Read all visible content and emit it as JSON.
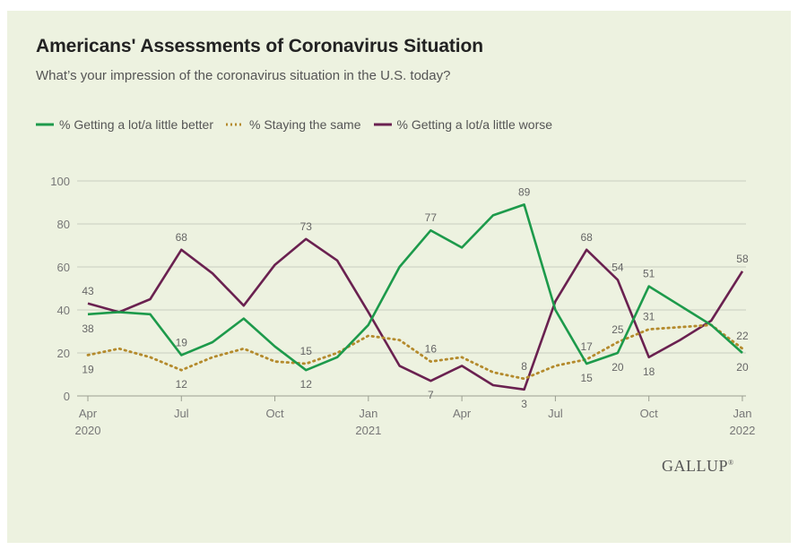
{
  "colors": {
    "better": "#1d9a4b",
    "same": "#b48a2c",
    "worse": "#6a2150",
    "grid": "#c9cdbf",
    "background": "#edf2e0"
  },
  "chart_data": {
    "type": "line",
    "title": "Americans' Assessments of Coronavirus Situation",
    "subtitle": "What’s your impression of the coronavirus situation in the U.S. today?",
    "xlabel": "",
    "ylabel": "",
    "ylim": [
      0,
      100
    ],
    "yticks": [
      0,
      20,
      40,
      60,
      80,
      100
    ],
    "xticks": [
      {
        "month": 0,
        "label": "Apr",
        "year": "2020"
      },
      {
        "month": 3,
        "label": "Jul",
        "year": ""
      },
      {
        "month": 6,
        "label": "Oct",
        "year": ""
      },
      {
        "month": 9,
        "label": "Jan",
        "year": "2021"
      },
      {
        "month": 12,
        "label": "Apr",
        "year": ""
      },
      {
        "month": 15,
        "label": "Jul",
        "year": ""
      },
      {
        "month": 18,
        "label": "Oct",
        "year": ""
      },
      {
        "month": 21,
        "label": "Jan",
        "year": "2022"
      }
    ],
    "series": [
      {
        "key": "better",
        "name": "% Getting a lot/a little better",
        "style": "solid",
        "points": [
          [
            0,
            38
          ],
          [
            1,
            39
          ],
          [
            2,
            38
          ],
          [
            3,
            19
          ],
          [
            4,
            25
          ],
          [
            5,
            36
          ],
          [
            6,
            23
          ],
          [
            7,
            12
          ],
          [
            8,
            18
          ],
          [
            9,
            33
          ],
          [
            10,
            60
          ],
          [
            11,
            77
          ],
          [
            12,
            69
          ],
          [
            13,
            84
          ],
          [
            14,
            89
          ],
          [
            15,
            40
          ],
          [
            16,
            15
          ],
          [
            17,
            20
          ],
          [
            18,
            51
          ],
          [
            19,
            42
          ],
          [
            20,
            33
          ],
          [
            21,
            20
          ]
        ],
        "labels": [
          {
            "i": 0,
            "text": "38",
            "pos": "below"
          },
          {
            "i": 3,
            "text": "19",
            "pos": "above"
          },
          {
            "i": 7,
            "text": "12",
            "pos": "below"
          },
          {
            "i": 11,
            "text": "77",
            "pos": "above"
          },
          {
            "i": 14,
            "text": "89",
            "pos": "above"
          },
          {
            "i": 16,
            "text": "15",
            "pos": "below"
          },
          {
            "i": 17,
            "text": "20",
            "pos": "below"
          },
          {
            "i": 18,
            "text": "51",
            "pos": "above"
          },
          {
            "i": 21,
            "text": "20",
            "pos": "below"
          }
        ]
      },
      {
        "key": "same",
        "name": "% Staying the same",
        "style": "dotted",
        "points": [
          [
            0,
            19
          ],
          [
            1,
            22
          ],
          [
            2,
            18
          ],
          [
            3,
            12
          ],
          [
            4,
            18
          ],
          [
            5,
            22
          ],
          [
            6,
            16
          ],
          [
            7,
            15
          ],
          [
            8,
            20
          ],
          [
            9,
            28
          ],
          [
            10,
            26
          ],
          [
            11,
            16
          ],
          [
            12,
            18
          ],
          [
            13,
            11
          ],
          [
            14,
            8
          ],
          [
            15,
            14
          ],
          [
            16,
            17
          ],
          [
            17,
            25
          ],
          [
            18,
            31
          ],
          [
            19,
            32
          ],
          [
            20,
            33
          ],
          [
            21,
            22
          ]
        ],
        "labels": [
          {
            "i": 0,
            "text": "19",
            "pos": "below"
          },
          {
            "i": 3,
            "text": "12",
            "pos": "below"
          },
          {
            "i": 7,
            "text": "15",
            "pos": "above"
          },
          {
            "i": 11,
            "text": "16",
            "pos": "above"
          },
          {
            "i": 14,
            "text": "8",
            "pos": "above"
          },
          {
            "i": 16,
            "text": "17",
            "pos": "above"
          },
          {
            "i": 17,
            "text": "25",
            "pos": "above"
          },
          {
            "i": 18,
            "text": "31",
            "pos": "above"
          },
          {
            "i": 21,
            "text": "22",
            "pos": "above"
          }
        ]
      },
      {
        "key": "worse",
        "name": "% Getting a lot/a little worse",
        "style": "solid",
        "points": [
          [
            0,
            43
          ],
          [
            1,
            39
          ],
          [
            2,
            45
          ],
          [
            3,
            68
          ],
          [
            4,
            57
          ],
          [
            5,
            42
          ],
          [
            6,
            61
          ],
          [
            7,
            73
          ],
          [
            8,
            63
          ],
          [
            9,
            39
          ],
          [
            10,
            14
          ],
          [
            11,
            7
          ],
          [
            12,
            14
          ],
          [
            13,
            5
          ],
          [
            14,
            3
          ],
          [
            15,
            44
          ],
          [
            16,
            68
          ],
          [
            17,
            54
          ],
          [
            18,
            18
          ],
          [
            19,
            26
          ],
          [
            20,
            35
          ],
          [
            21,
            58
          ]
        ],
        "labels": [
          {
            "i": 0,
            "text": "43",
            "pos": "above"
          },
          {
            "i": 3,
            "text": "68",
            "pos": "above"
          },
          {
            "i": 7,
            "text": "73",
            "pos": "above"
          },
          {
            "i": 11,
            "text": "7",
            "pos": "below"
          },
          {
            "i": 14,
            "text": "3",
            "pos": "below"
          },
          {
            "i": 16,
            "text": "68",
            "pos": "above"
          },
          {
            "i": 17,
            "text": "54",
            "pos": "above"
          },
          {
            "i": 18,
            "text": "18",
            "pos": "below"
          },
          {
            "i": 21,
            "text": "58",
            "pos": "above"
          }
        ]
      }
    ]
  },
  "logo": {
    "text": "GALLUP"
  },
  "registered": "®"
}
